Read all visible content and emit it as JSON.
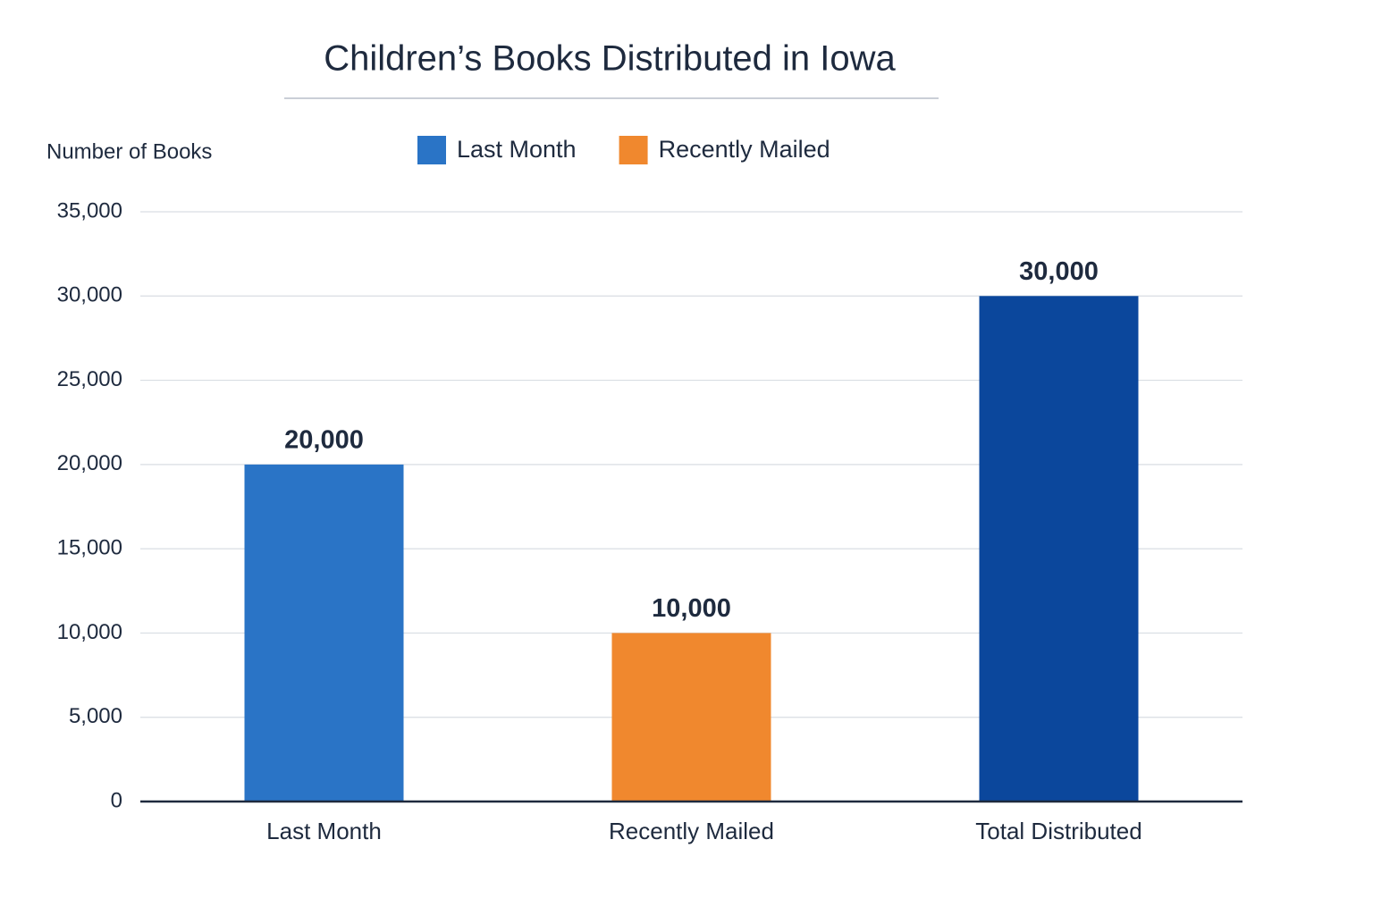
{
  "chart_data": {
    "type": "bar",
    "title": "Children’s Books Distributed in Iowa",
    "y_label": "Number of Books",
    "categories": [
      "Last Month",
      "Recently Mailed",
      "Total Distributed"
    ],
    "values": [
      20000,
      10000,
      30000
    ],
    "value_labels": [
      "20,000",
      "10,000",
      "30,000"
    ],
    "colors": [
      "#2a74c6",
      "#f0882e",
      "#0b479c"
    ],
    "legend": [
      {
        "name": "Last Month",
        "color": "#2a74c6"
      },
      {
        "name": "Recently Mailed",
        "color": "#f0882e"
      }
    ],
    "ylim": [
      0,
      35000
    ],
    "yticks": [
      0,
      {
        "value": 5000,
        "label": "5,000"
      },
      {
        "value": 10000,
        "label": "10,000"
      },
      {
        "value": 15000,
        "label": "15,000"
      },
      {
        "value": 20000,
        "label": "20,000"
      },
      {
        "value": 25000,
        "label": "25,000"
      },
      {
        "value": 30000,
        "label": "30,000"
      },
      {
        "value": 35000,
        "label": "35,000"
      }
    ],
    "grid": true
  }
}
